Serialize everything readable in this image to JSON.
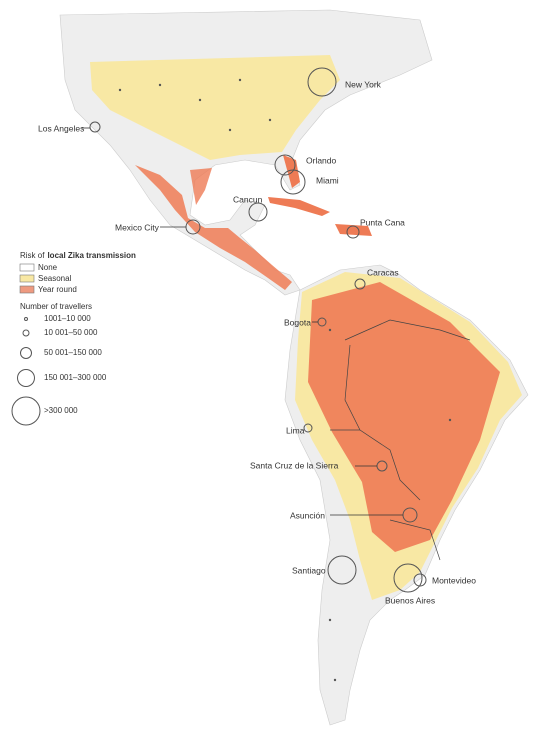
{
  "legend": {
    "risk_title": {
      "prefix": "Risk of",
      "emphasis": "local Zika transmission"
    },
    "risk_items": [
      "None",
      "Seasonal",
      "Year round"
    ],
    "travellers_title": "Number of travellers",
    "traveller_items": [
      "1001–10 000",
      "10 001–50 000",
      "50 001–150 000",
      "150 001–300 000",
      ">300 000"
    ]
  },
  "cities": [
    "New York",
    "Los Angeles",
    "Orlando",
    "Miami",
    "Cancun",
    "Mexico City",
    "Punta Cana",
    "Caracas",
    "Bogota",
    "Lima",
    "Santa Cruz de la Sierra",
    "Asunción",
    "Santiago",
    "Montevideo",
    "Buenos Aires"
  ]
}
